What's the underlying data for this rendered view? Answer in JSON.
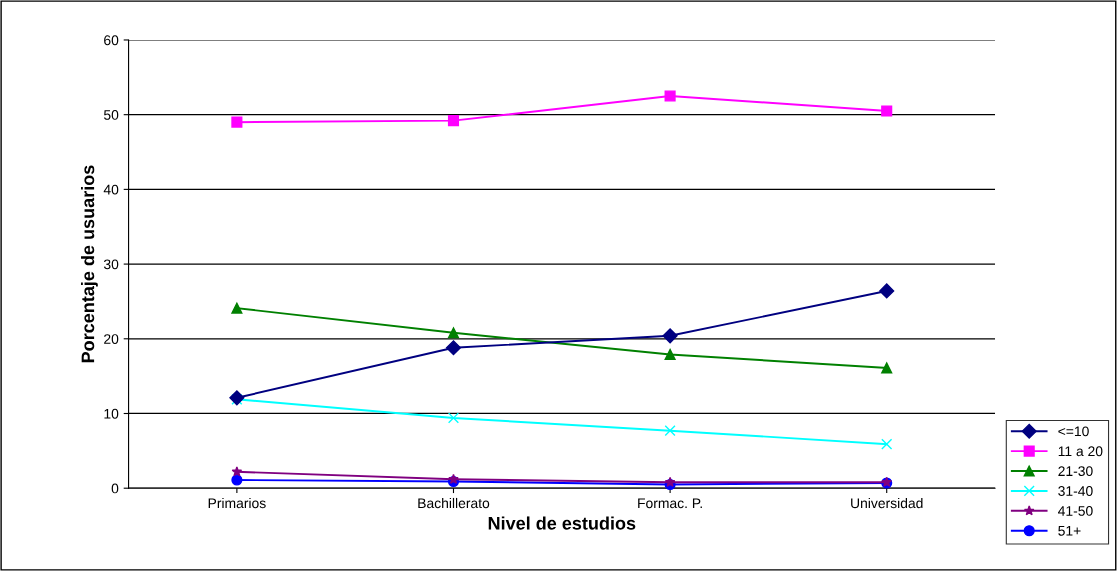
{
  "chart_data": {
    "type": "line",
    "xlabel": "Nivel de estudios",
    "ylabel": "Porcentaje de usuarios",
    "categories": [
      "Primarios",
      "Bachillerato",
      "Formac. P.",
      "Universidad"
    ],
    "series": [
      {
        "name": "<=10",
        "color": "#000080",
        "marker": "diamond",
        "values": [
          12.1,
          18.8,
          20.4,
          26.4
        ]
      },
      {
        "name": "11 a 20",
        "color": "#ff00ff",
        "marker": "square",
        "values": [
          49.0,
          49.2,
          52.5,
          50.5
        ]
      },
      {
        "name": "21-30",
        "color": "#008000",
        "marker": "triangle",
        "values": [
          24.1,
          20.8,
          17.9,
          16.1
        ]
      },
      {
        "name": "31-40",
        "color": "#00ffff",
        "marker": "cross",
        "values": [
          11.9,
          9.4,
          7.7,
          5.9
        ]
      },
      {
        "name": "41-50",
        "color": "#800080",
        "marker": "star",
        "values": [
          2.2,
          1.2,
          0.8,
          0.8
        ]
      },
      {
        "name": "51+",
        "color": "#0000ff",
        "marker": "circle",
        "values": [
          1.1,
          0.9,
          0.5,
          0.7
        ]
      }
    ],
    "ylim": [
      0,
      60
    ],
    "yticks": [
      0,
      10,
      20,
      30,
      40,
      50,
      60
    ],
    "grid": "y",
    "legend": "bottom right",
    "line_style": "solid"
  }
}
